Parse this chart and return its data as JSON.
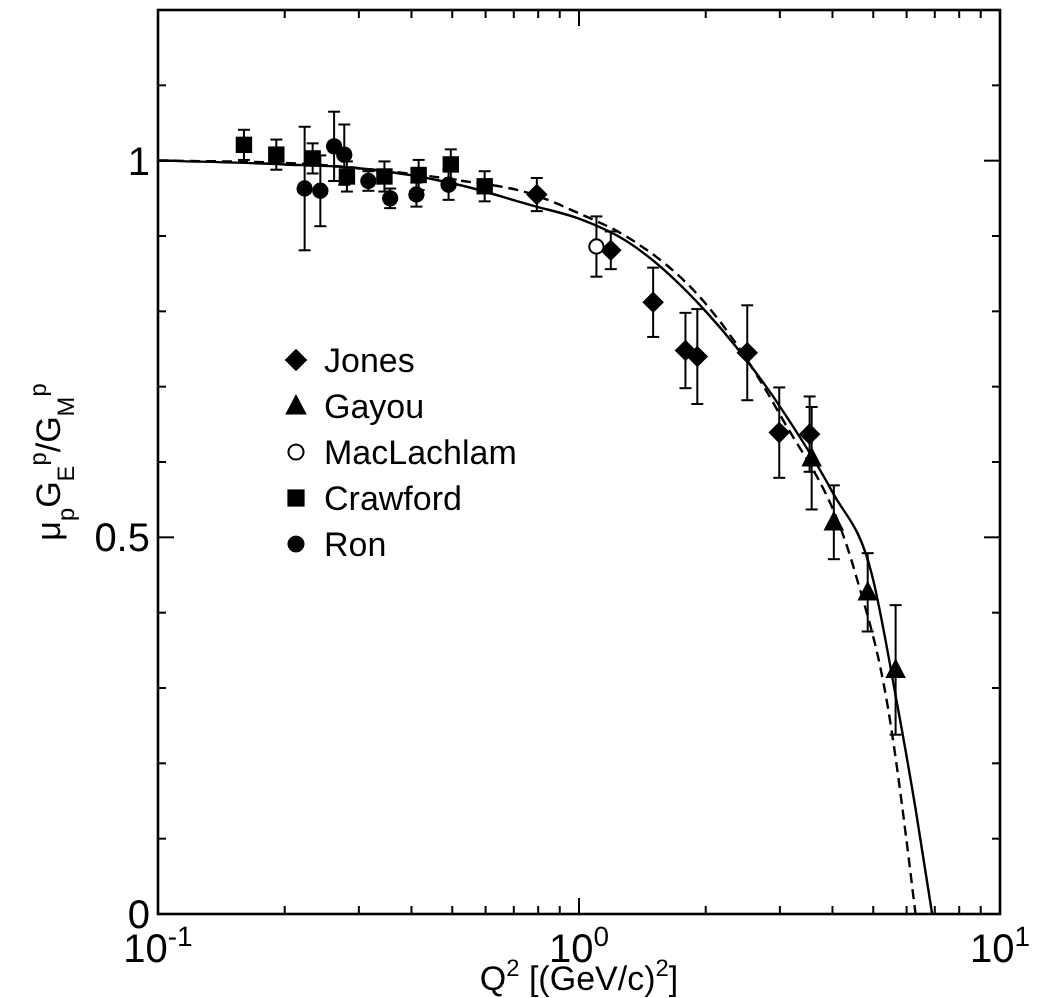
{
  "chart_data": {
    "type": "scatter",
    "xlabel": "Q$^{2}$ [(GeV/c)$^{2}$]",
    "ylabel": "μ$_{p}$G$_{E}$$^{p}$/G$_{M}$$^{p}$",
    "log": "x",
    "xlim": [
      0.1,
      10
    ],
    "ylim": [
      0,
      1.2
    ],
    "xticks": [
      {
        "value": 0.1,
        "label": "10$^{-1}$"
      },
      {
        "value": 0.2,
        "label": null
      },
      {
        "value": 0.3,
        "label": null
      },
      {
        "value": 0.4,
        "label": null
      },
      {
        "value": 0.5,
        "label": null
      },
      {
        "value": 0.6,
        "label": null
      },
      {
        "value": 0.7,
        "label": null
      },
      {
        "value": 0.8,
        "label": null
      },
      {
        "value": 0.9,
        "label": null
      },
      {
        "value": 1,
        "label": "10$^{0}$"
      },
      {
        "value": 2,
        "label": null
      },
      {
        "value": 3,
        "label": null
      },
      {
        "value": 4,
        "label": null
      },
      {
        "value": 5,
        "label": null
      },
      {
        "value": 6,
        "label": null
      },
      {
        "value": 7,
        "label": null
      },
      {
        "value": 8,
        "label": null
      },
      {
        "value": 9,
        "label": null
      },
      {
        "value": 10,
        "label": "10$^{1}$"
      }
    ],
    "yticks": [
      0,
      {
        "value": 0.1,
        "label": null
      },
      {
        "value": 0.2,
        "label": null
      },
      {
        "value": 0.3,
        "label": null
      },
      {
        "value": 0.4,
        "label": null
      },
      0.5,
      {
        "value": 0.6,
        "label": null
      },
      {
        "value": 0.7,
        "label": null
      },
      {
        "value": 0.8,
        "label": null
      },
      {
        "value": 0.9,
        "label": null
      },
      1,
      {
        "value": 1.1,
        "label": null
      }
    ],
    "grid": false,
    "legend": "left",
    "series": [
      {
        "name": "Jones",
        "color": "#000000",
        "marker": "diamond",
        "x": [
          0.794,
          1.19,
          1.5,
          1.79,
          1.91,
          2.51,
          2.99,
          3.53
        ],
        "values": [
          0.955,
          0.881,
          0.812,
          0.748,
          0.74,
          0.745,
          0.639,
          0.637
        ],
        "errors": [
          0.022,
          0.025,
          0.046,
          0.05,
          0.063,
          0.063,
          0.06,
          0.05
        ]
      },
      {
        "name": "Gayou",
        "color": "#000000",
        "marker": "triangle",
        "x": [
          3.57,
          4.03,
          4.85,
          5.65
        ],
        "values": [
          0.605,
          0.52,
          0.427,
          0.324
        ],
        "errors": [
          0.068,
          0.049,
          0.052,
          0.086
        ]
      },
      {
        "name": "MacLachlam",
        "color": "#ffffff",
        "marker": "circle",
        "x": [
          1.1
        ],
        "values": [
          0.886
        ],
        "errors": [
          0.04
        ]
      },
      {
        "name": "Crawford",
        "color": "#000000",
        "marker": "square",
        "x": [
          0.16,
          0.191,
          0.233,
          0.281,
          0.345,
          0.416,
          0.496,
          0.597
        ],
        "values": [
          1.021,
          1.008,
          1.003,
          0.979,
          0.979,
          0.981,
          0.995,
          0.966
        ],
        "errors": [
          0.02,
          0.02,
          0.02,
          0.02,
          0.02,
          0.02,
          0.02,
          0.02
        ]
      },
      {
        "name": "Ron",
        "color": "#000000",
        "marker": "circle",
        "x": [
          0.223,
          0.243,
          0.262,
          0.277,
          0.316,
          0.356,
          0.411,
          0.49
        ],
        "values": [
          0.963,
          0.96,
          1.019,
          1.008,
          0.973,
          0.95,
          0.955,
          0.968
        ],
        "errors": [
          0.082,
          0.047,
          0.046,
          0.04,
          0.013,
          0.013,
          0.016,
          0.02
        ]
      },
      {
        "type": "line",
        "color": "#000000",
        "line_style": "solid",
        "x": [
          0.1,
          0.2,
          0.3,
          0.5,
          0.78,
          1.0,
          1.29,
          2.0,
          3.09,
          4.0,
          4.96,
          5.71,
          6.3,
          6.9
        ],
        "values": [
          1,
          0.995,
          0.99,
          0.97,
          0.94,
          0.923,
          0.894,
          0.8,
          0.663,
          0.56,
          0.451,
          0.276,
          0.14,
          0
        ]
      },
      {
        "type": "line",
        "color": "#000000",
        "line_style": "dashed",
        "x": [
          0.1,
          0.2,
          0.3,
          0.5,
          0.78,
          1.0,
          1.29,
          2.0,
          3.0,
          4.54,
          5.41,
          6.3
        ],
        "values": [
          1,
          0.997,
          0.99,
          0.975,
          0.955,
          0.93,
          0.9,
          0.81,
          0.663,
          0.451,
          0.276,
          0
        ]
      }
    ]
  }
}
